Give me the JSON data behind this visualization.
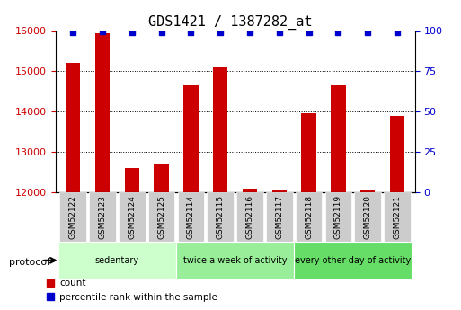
{
  "title": "GDS1421 / 1387282_at",
  "samples": [
    "GSM52122",
    "GSM52123",
    "GSM52124",
    "GSM52125",
    "GSM52114",
    "GSM52115",
    "GSM52116",
    "GSM52117",
    "GSM52118",
    "GSM52119",
    "GSM52120",
    "GSM52121"
  ],
  "counts": [
    15200,
    15950,
    12600,
    12700,
    14650,
    15100,
    12080,
    12050,
    13950,
    14650,
    12050,
    13900
  ],
  "percentile_ranks": [
    99,
    100,
    99,
    99,
    99,
    99,
    99,
    99,
    99,
    99,
    99,
    99
  ],
  "ylim_left": [
    12000,
    16000
  ],
  "ylim_right": [
    0,
    100
  ],
  "yticks_left": [
    12000,
    13000,
    14000,
    15000,
    16000
  ],
  "yticks_right": [
    0,
    25,
    50,
    75,
    100
  ],
  "bar_color": "#cc0000",
  "dot_color": "#0000cc",
  "bar_width": 0.5,
  "groups": [
    {
      "label": "sedentary",
      "start": 0,
      "end": 4,
      "color": "#ccffcc"
    },
    {
      "label": "twice a week of activity",
      "start": 4,
      "end": 8,
      "color": "#99ff99"
    },
    {
      "label": "every other day of activity",
      "start": 8,
      "end": 12,
      "color": "#66ff66"
    }
  ],
  "protocol_label": "protocol",
  "legend_count_label": "count",
  "legend_pct_label": "percentile rank within the sample",
  "background_color": "#ffffff",
  "plot_bg_color": "#ffffff",
  "tick_label_color_left": "#cc0000",
  "tick_label_color_right": "#0000cc",
  "grid_color": "#000000",
  "x_tick_bg_color": "#cccccc"
}
